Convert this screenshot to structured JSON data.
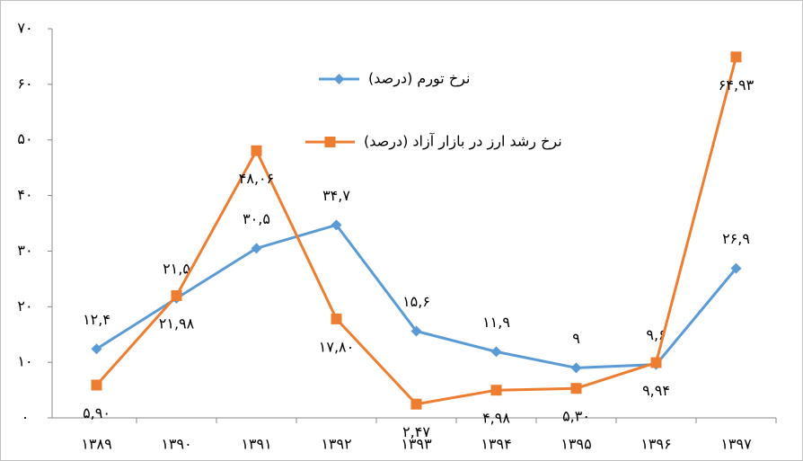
{
  "chart_data": {
    "type": "line",
    "categories": [
      "۱۳۸۹",
      "۱۳۹۰",
      "۱۳۹۱",
      "۱۳۹۲",
      "۱۳۹۳",
      "۱۳۹۴",
      "۱۳۹۵",
      "۱۳۹۶",
      "۱۳۹۷"
    ],
    "series": [
      {
        "name": "نرخ تورم (درصد)",
        "color": "#5b9bd5",
        "marker": "diamond",
        "values": [
          12.4,
          21.5,
          30.5,
          34.7,
          15.6,
          11.9,
          9,
          9.6,
          26.9
        ],
        "value_labels": [
          "۱۲,۴",
          "۲۱,۵",
          "۳۰,۵",
          "۳۴,۷",
          "۱۵,۶",
          "۱۱,۹",
          "۹",
          "۹,۶",
          "۲۶,۹"
        ]
      },
      {
        "name": "نرخ رشد ارز در بازار آزاد (درصد)",
        "color": "#ed7d31",
        "marker": "square",
        "values": [
          5.9,
          21.98,
          48.06,
          17.8,
          2.47,
          4.98,
          5.3,
          9.94,
          64.93
        ],
        "value_labels": [
          "۵,۹۰",
          "۲۱,۹۸",
          "۴۸,۰۶",
          "۱۷,۸۰",
          "۲,۴۷",
          "۴,۹۸",
          "۵,۳۰",
          "۹,۹۴",
          "۶۴,۹۳"
        ]
      }
    ],
    "ylim": [
      0,
      70
    ],
    "yticks": [
      {
        "value": 0,
        "label": "۰"
      },
      {
        "value": 10,
        "label": "۱۰"
      },
      {
        "value": 20,
        "label": "۲۰"
      },
      {
        "value": 30,
        "label": "۳۰"
      },
      {
        "value": 40,
        "label": "۴۰"
      },
      {
        "value": 50,
        "label": "۵۰"
      },
      {
        "value": 60,
        "label": "۶۰"
      },
      {
        "value": 70,
        "label": "۷۰"
      }
    ],
    "grid": false,
    "legend": "top"
  }
}
